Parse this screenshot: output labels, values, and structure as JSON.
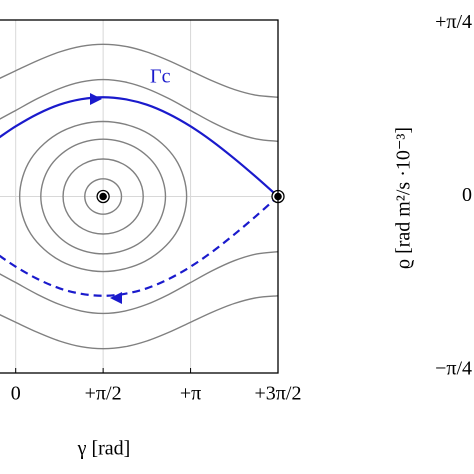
{
  "chart_data": [
    {
      "type": "line",
      "xlabel": "γ [rad]",
      "annotation": "Γc",
      "xlim": [
        -0.3,
        4.7124
      ],
      "xticks": [
        0,
        {
          "value": 1.5708,
          "label": "+π/2"
        },
        {
          "value": 3.1416,
          "label": "+π"
        },
        {
          "value": 4.7124,
          "label": "+3π/2"
        }
      ],
      "ylim": [
        -0.8,
        0.8
      ],
      "yticks": [
        0
      ],
      "grid": true,
      "series": [
        {
          "color": "#1a1acc",
          "dashed": false,
          "closed": false,
          "x": [
            -0.3,
            0,
            0.393,
            0.785,
            1.178,
            1.571,
            1.963,
            2.356,
            2.749,
            3.142,
            3.534,
            3.927,
            4.32,
            4.712
          ],
          "values": [
            0.267,
            0.318,
            0.374,
            0.416,
            0.441,
            0.45,
            0.441,
            0.416,
            0.374,
            0.318,
            0.25,
            0.172,
            0.088,
            0
          ]
        },
        {
          "color": "#1a1acc",
          "dashed": true,
          "closed": false,
          "x": [
            -0.3,
            0,
            0.393,
            0.785,
            1.178,
            1.571,
            1.963,
            2.356,
            2.749,
            3.142,
            3.534,
            3.927,
            4.32,
            4.712
          ],
          "values": [
            -0.267,
            -0.318,
            -0.374,
            -0.416,
            -0.441,
            -0.45,
            -0.441,
            -0.416,
            -0.374,
            -0.318,
            -0.25,
            -0.172,
            -0.088,
            0
          ]
        },
        {
          "color": "#808080",
          "dashed": false,
          "closed": false,
          "x": [
            -0.3,
            0,
            0.393,
            0.785,
            1.178,
            1.571,
            1.963,
            2.356,
            2.749,
            3.142,
            3.534,
            3.927,
            4.32,
            4.712
          ],
          "values": [
            0.534,
            0.57,
            0.616,
            0.655,
            0.681,
            0.69,
            0.681,
            0.655,
            0.616,
            0.57,
            0.524,
            0.485,
            0.459,
            0.45
          ]
        },
        {
          "color": "#808080",
          "dashed": false,
          "closed": false,
          "x": [
            -0.3,
            0,
            0.393,
            0.785,
            1.178,
            1.571,
            1.963,
            2.356,
            2.749,
            3.142,
            3.534,
            3.927,
            4.32,
            4.712
          ],
          "values": [
            0.349,
            0.39,
            0.444,
            0.489,
            0.519,
            0.53,
            0.519,
            0.489,
            0.444,
            0.39,
            0.336,
            0.291,
            0.261,
            0.25
          ]
        },
        {
          "color": "#808080",
          "dashed": false,
          "closed": false,
          "x": [
            -0.3,
            0,
            0.393,
            0.785,
            1.178,
            1.571,
            1.963,
            2.356,
            2.749,
            3.142,
            3.534,
            3.927,
            4.32,
            4.712
          ],
          "values": [
            -0.534,
            -0.57,
            -0.616,
            -0.655,
            -0.681,
            -0.69,
            -0.681,
            -0.655,
            -0.616,
            -0.57,
            -0.524,
            -0.485,
            -0.459,
            -0.45
          ]
        },
        {
          "color": "#808080",
          "dashed": false,
          "closed": false,
          "x": [
            -0.3,
            0,
            0.393,
            0.785,
            1.178,
            1.571,
            1.963,
            2.356,
            2.749,
            3.142,
            3.534,
            3.927,
            4.32,
            4.712
          ],
          "values": [
            -0.349,
            -0.39,
            -0.444,
            -0.489,
            -0.519,
            -0.53,
            -0.519,
            -0.489,
            -0.444,
            -0.39,
            -0.336,
            -0.291,
            -0.261,
            -0.25
          ]
        },
        {
          "color": "#808080",
          "dashed": false,
          "closed": true,
          "x": [
            1.901,
            1.857,
            1.736,
            1.571,
            1.406,
            1.285,
            1.241,
            1.285,
            1.406,
            1.571,
            1.736,
            1.857
          ],
          "values": [
            0,
            0.04,
            0.069,
            0.08,
            0.069,
            0.04,
            0,
            -0.04,
            -0.069,
            -0.08,
            -0.069,
            -0.04
          ]
        },
        {
          "color": "#808080",
          "dashed": false,
          "closed": true,
          "x": [
            2.291,
            2.195,
            1.931,
            1.571,
            1.211,
            0.947,
            0.851,
            0.947,
            1.211,
            1.571,
            1.931,
            2.195
          ],
          "values": [
            0,
            0.085,
            0.147,
            0.17,
            0.147,
            0.085,
            0,
            -0.085,
            -0.147,
            -0.17,
            -0.147,
            -0.085
          ]
        },
        {
          "color": "#808080",
          "dashed": false,
          "closed": true,
          "x": [
            2.691,
            2.541,
            2.131,
            1.571,
            1.011,
            0.601,
            0.451,
            0.601,
            1.011,
            1.571,
            2.131,
            2.541
          ],
          "values": [
            0,
            0.13,
            0.225,
            0.26,
            0.225,
            0.13,
            0,
            -0.13,
            -0.225,
            -0.26,
            -0.225,
            -0.13
          ]
        },
        {
          "color": "#808080",
          "dashed": false,
          "closed": true,
          "x": [
            3.071,
            2.87,
            2.321,
            1.571,
            0.821,
            0.272,
            0.071,
            0.272,
            0.821,
            1.571,
            2.321,
            2.87
          ],
          "values": [
            0,
            0.17,
            0.294,
            0.34,
            0.294,
            0.17,
            0,
            -0.17,
            -0.294,
            -0.34,
            -0.294,
            -0.17
          ]
        }
      ],
      "points": {
        "color": "#000000",
        "x": [
          1.5708,
          4.7124
        ],
        "values": [
          0,
          0
        ]
      }
    },
    {
      "type": "line",
      "ylabel": "ϱ [rad m²/s ·10⁻³]",
      "ylim": [
        -0.8,
        0.8
      ],
      "yticks": [
        {
          "value": 0.7854,
          "label": "+π/4"
        },
        0,
        {
          "value": -0.7854,
          "label": "−π/4"
        }
      ]
    }
  ]
}
